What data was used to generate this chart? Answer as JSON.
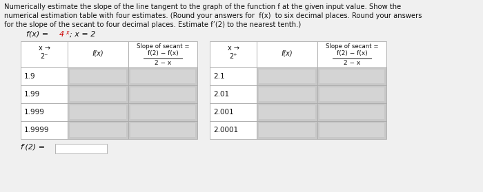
{
  "title_line1": "Numerically estimate the slope of the line tangent to the graph of the function f at the given input value. Show the",
  "title_line2": "numerical estimation table with four estimates. (Round your answers for  f(x)  to six decimal places. Round your answers",
  "title_line3": "for the slope of the secant to four decimal places. Estimate f’(2) to the nearest tenth.)",
  "formula_prefix": "f(x) = ",
  "formula_base": "4",
  "formula_exp": "x",
  "formula_suffix": "; x = 2",
  "left_rows": [
    "1.9",
    "1.99",
    "1.999",
    "1.9999"
  ],
  "right_rows": [
    "2.1",
    "2.01",
    "2.001",
    "2.0001"
  ],
  "fp2_label": "f′(2) =",
  "bg_color": "#f0f0f0",
  "cell_white": "#ffffff",
  "cell_gray": "#c8c8c8",
  "cell_gray_inner": "#d4d4d4",
  "border_color": "#aaaaaa",
  "text_color": "#111111",
  "red_color": "#cc0000",
  "font_size_title": 7.2,
  "font_size_table": 7.0,
  "font_size_formula": 8.0
}
